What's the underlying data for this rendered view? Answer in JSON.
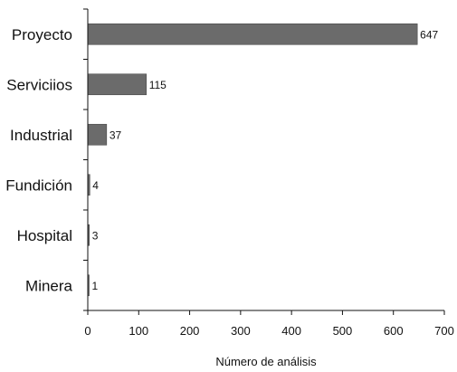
{
  "chart_data": {
    "type": "bar",
    "orientation": "horizontal",
    "categories": [
      "Proyecto",
      "Serviciios",
      "Industrial",
      "Fundición",
      "Hospital",
      "Minera"
    ],
    "values": [
      647,
      115,
      37,
      4,
      3,
      1
    ],
    "data_labels": [
      "647",
      "115",
      "37",
      "4",
      "3",
      "1"
    ],
    "xlabel": "Número de análisis",
    "ylabel": "",
    "xlim": [
      0,
      700
    ],
    "xticks": [
      0,
      100,
      200,
      300,
      400,
      500,
      600,
      700
    ],
    "xtick_labels": [
      "0",
      "100",
      "200",
      "300",
      "400",
      "500",
      "600",
      "700"
    ],
    "grid": false,
    "legend": "none",
    "colors": {
      "bar": "#6b6b6b",
      "axis": "#111111"
    }
  }
}
